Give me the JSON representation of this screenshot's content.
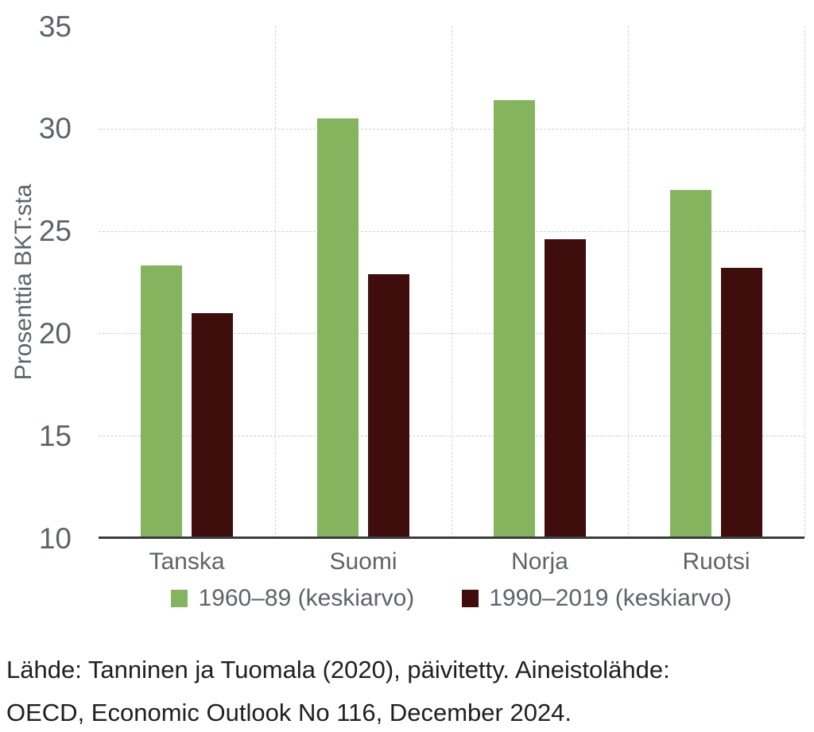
{
  "colors": {
    "series1_green": "#85b45e",
    "series2_maroon": "#3f0e0c",
    "grid_line": "#cfcfcf",
    "axis_line": "#3c3c3c",
    "axis_text": "#5f6368",
    "source_text": "#202020",
    "background": "#ffffff"
  },
  "chart_data": {
    "type": "bar",
    "title": "",
    "categories": [
      "Tanska",
      "Suomi",
      "Norja",
      "Ruotsi"
    ],
    "series": [
      {
        "name": "1960–89 (keskiarvo)",
        "color": "#85b45e",
        "values": [
          23.3,
          30.5,
          31.4,
          27.0
        ]
      },
      {
        "name": "1990–2019 (keskiarvo)",
        "color": "#3f0e0c",
        "values": [
          21.0,
          22.9,
          24.6,
          23.2
        ]
      }
    ],
    "xlabel": "",
    "ylabel": "Prosenttia BKT:sta",
    "ylim": [
      10,
      35
    ],
    "yticks": [
      10,
      15,
      20,
      25,
      30,
      35
    ],
    "grid": {
      "horizontal": "dashed at 15,20,25,30",
      "vertical": "dashed at category boundaries and right edge",
      "baseline": "solid at y=10"
    },
    "legend_position": "bottom"
  },
  "source": {
    "line1": "Lähde: Tanninen ja Tuomala (2020), päivitetty. Aineistolähde:",
    "line2": "OECD, Economic Outlook No 116, December 2024."
  }
}
